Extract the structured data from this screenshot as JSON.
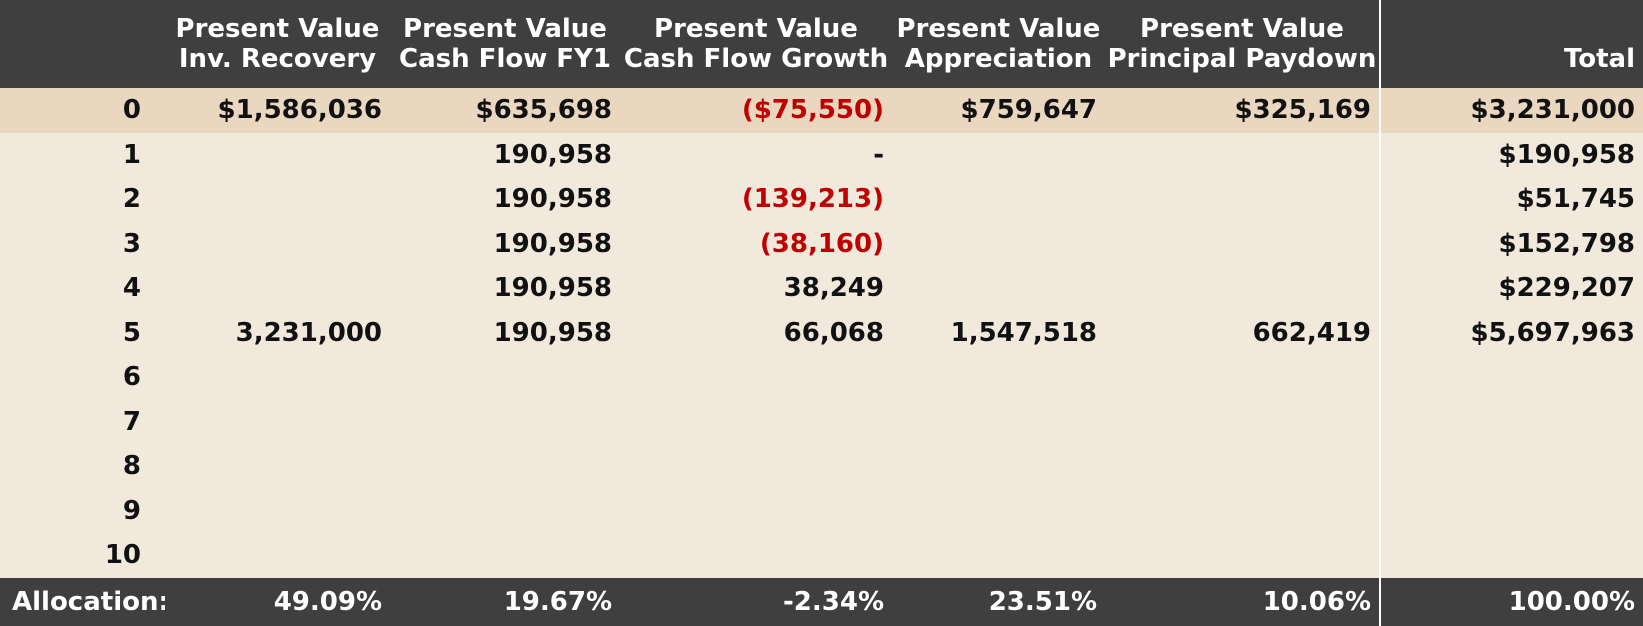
{
  "headers": {
    "line1": [
      "Present Value",
      "Present Value",
      "Present Value",
      "Present Value",
      "Present Value",
      ""
    ],
    "line2": [
      "Inv. Recovery",
      "Cash Flow FY1",
      "Cash Flow Growth",
      "Appreciation",
      "Principal Paydown",
      "Total"
    ]
  },
  "rows": [
    {
      "period": "0",
      "inv": "$1,586,036",
      "cf1": "$635,698",
      "growth": "($75,550)",
      "appr": "$759,647",
      "princ": "$325,169",
      "total": "$3,231,000"
    },
    {
      "period": "1",
      "inv": "",
      "cf1": "190,958",
      "growth": "-",
      "appr": "",
      "princ": "",
      "total": "$190,958"
    },
    {
      "period": "2",
      "inv": "",
      "cf1": "190,958",
      "growth": "(139,213)",
      "appr": "",
      "princ": "",
      "total": "$51,745"
    },
    {
      "period": "3",
      "inv": "",
      "cf1": "190,958",
      "growth": "(38,160)",
      "appr": "",
      "princ": "",
      "total": "$152,798"
    },
    {
      "period": "4",
      "inv": "",
      "cf1": "190,958",
      "growth": "38,249",
      "appr": "",
      "princ": "",
      "total": "$229,207"
    },
    {
      "period": "5",
      "inv": "3,231,000",
      "cf1": "190,958",
      "growth": "66,068",
      "appr": "1,547,518",
      "princ": "662,419",
      "total": "$5,697,963"
    },
    {
      "period": "6",
      "inv": "",
      "cf1": "",
      "growth": "",
      "appr": "",
      "princ": "",
      "total": ""
    },
    {
      "period": "7",
      "inv": "",
      "cf1": "",
      "growth": "",
      "appr": "",
      "princ": "",
      "total": ""
    },
    {
      "period": "8",
      "inv": "",
      "cf1": "",
      "growth": "",
      "appr": "",
      "princ": "",
      "total": ""
    },
    {
      "period": "9",
      "inv": "",
      "cf1": "",
      "growth": "",
      "appr": "",
      "princ": "",
      "total": ""
    },
    {
      "period": "10",
      "inv": "",
      "cf1": "",
      "growth": "",
      "appr": "",
      "princ": "",
      "total": ""
    }
  ],
  "footer": {
    "label": "Allocation:",
    "inv": "49.09%",
    "cf1": "19.67%",
    "growth": "-2.34%",
    "appr": "23.51%",
    "princ": "10.06%",
    "total": "100.00%"
  },
  "colors": {
    "header_bg": "#3f3f3f",
    "row0_bg": "#e9d7bf",
    "body_bg": "#f2e9dd",
    "negative": "#c00000"
  }
}
